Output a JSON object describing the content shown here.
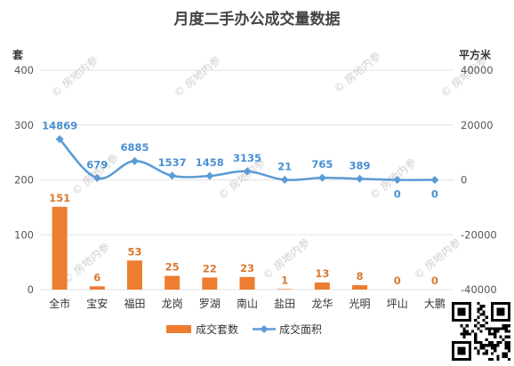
{
  "colors": {
    "bar": "#ed7d31",
    "line": "#5b9bd5",
    "grid": "#e3e3e3",
    "background": "#ffffff"
  },
  "watermark": "房地内参",
  "chart_data": {
    "type": "bar",
    "title": "月度二手办公成交量数据",
    "categories": [
      "全市",
      "宝安",
      "福田",
      "龙岗",
      "罗湖",
      "南山",
      "盐田",
      "龙华",
      "光明",
      "坪山",
      "大鹏"
    ],
    "series": [
      {
        "name": "成交套数",
        "type": "bar",
        "axis": "left",
        "values": [
          151,
          6,
          53,
          25,
          22,
          23,
          1,
          13,
          8,
          0,
          0
        ]
      },
      {
        "name": "成交面积",
        "type": "line",
        "axis": "right",
        "values": [
          14869,
          679,
          6885,
          1537,
          1458,
          3135,
          21,
          765,
          389,
          0,
          0
        ]
      }
    ],
    "y_left": {
      "label": "套",
      "range": [
        0,
        400
      ],
      "ticks": [
        0,
        100,
        200,
        300,
        400
      ]
    },
    "y_right": {
      "label": "平方米",
      "range": [
        -40000,
        40000
      ],
      "ticks": [
        -40000,
        -20000,
        0,
        20000,
        40000
      ]
    },
    "grid": true,
    "legend_position": "bottom"
  }
}
